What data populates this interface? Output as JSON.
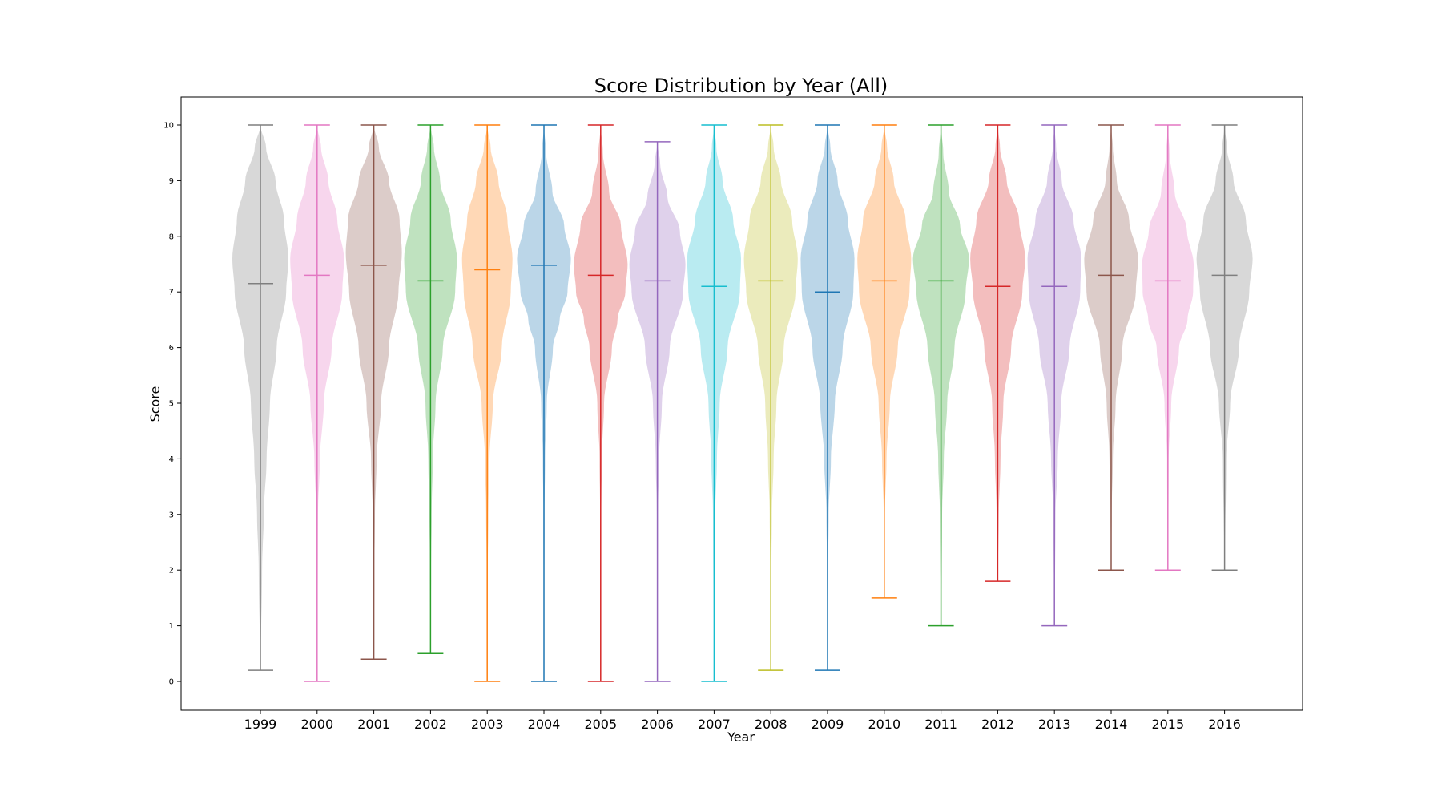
{
  "chart_data": {
    "type": "violin",
    "title": "Score Distribution by Year (All)",
    "xlabel": "Year",
    "ylabel": "Score",
    "ylim": [
      -0.5,
      10.5
    ],
    "yticks": [
      0,
      1,
      2,
      3,
      4,
      5,
      6,
      7,
      8,
      9,
      10
    ],
    "grid": false,
    "categories": [
      "1999",
      "2000",
      "2001",
      "2002",
      "2003",
      "2004",
      "2005",
      "2006",
      "2007",
      "2008",
      "2009",
      "2010",
      "2011",
      "2012",
      "2013",
      "2014",
      "2015",
      "2016"
    ],
    "series": [
      {
        "year": "1999",
        "color": "#7f7f7f",
        "min": 0.2,
        "max": 10.0,
        "median": 7.15,
        "profile": [
          [
            0.2,
            0.002
          ],
          [
            2.0,
            0.03
          ],
          [
            3.0,
            0.06
          ],
          [
            4.0,
            0.11
          ],
          [
            5.0,
            0.17
          ],
          [
            6.0,
            0.29
          ],
          [
            7.0,
            0.46
          ],
          [
            7.6,
            0.5
          ],
          [
            8.3,
            0.42
          ],
          [
            9.0,
            0.27
          ],
          [
            9.6,
            0.1
          ],
          [
            10.0,
            0.0
          ]
        ]
      },
      {
        "year": "2000",
        "color": "#e377c2",
        "min": 0.0,
        "max": 10.0,
        "median": 7.3,
        "profile": [
          [
            0.0,
            0.002
          ],
          [
            3.0,
            0.015
          ],
          [
            4.0,
            0.05
          ],
          [
            5.0,
            0.12
          ],
          [
            6.0,
            0.26
          ],
          [
            7.0,
            0.45
          ],
          [
            7.6,
            0.48
          ],
          [
            8.3,
            0.36
          ],
          [
            9.0,
            0.2
          ],
          [
            9.6,
            0.07
          ],
          [
            10.0,
            0.0
          ]
        ]
      },
      {
        "year": "2001",
        "color": "#8c564b",
        "min": 0.4,
        "max": 10.0,
        "median": 7.48,
        "profile": [
          [
            0.4,
            0.002
          ],
          [
            2.0,
            0.01
          ],
          [
            3.0,
            0.02
          ],
          [
            4.0,
            0.05
          ],
          [
            5.0,
            0.13
          ],
          [
            6.0,
            0.27
          ],
          [
            7.0,
            0.44
          ],
          [
            7.7,
            0.5
          ],
          [
            8.3,
            0.46
          ],
          [
            9.0,
            0.27
          ],
          [
            9.6,
            0.09
          ],
          [
            10.0,
            0.0
          ]
        ]
      },
      {
        "year": "2002",
        "color": "#2ca02c",
        "min": 0.5,
        "max": 10.0,
        "median": 7.2,
        "profile": [
          [
            0.5,
            0.002
          ],
          [
            2.0,
            0.01
          ],
          [
            3.0,
            0.02
          ],
          [
            4.0,
            0.04
          ],
          [
            5.0,
            0.09
          ],
          [
            6.0,
            0.22
          ],
          [
            7.0,
            0.44
          ],
          [
            7.6,
            0.47
          ],
          [
            8.3,
            0.36
          ],
          [
            9.0,
            0.17
          ],
          [
            9.6,
            0.06
          ],
          [
            10.0,
            0.0
          ]
        ]
      },
      {
        "year": "2003",
        "color": "#ff7f0e",
        "min": 0.0,
        "max": 10.0,
        "median": 7.4,
        "profile": [
          [
            0.0,
            0.002
          ],
          [
            2.0,
            0.01
          ],
          [
            3.0,
            0.02
          ],
          [
            4.0,
            0.04
          ],
          [
            5.0,
            0.1
          ],
          [
            6.0,
            0.26
          ],
          [
            7.0,
            0.42
          ],
          [
            7.6,
            0.45
          ],
          [
            8.3,
            0.36
          ],
          [
            9.0,
            0.2
          ],
          [
            9.6,
            0.06
          ],
          [
            10.0,
            0.0
          ]
        ]
      },
      {
        "year": "2004",
        "color": "#1f77b4",
        "min": 0.0,
        "max": 10.0,
        "median": 7.48,
        "profile": [
          [
            0.0,
            0.002
          ],
          [
            3.0,
            0.01
          ],
          [
            4.0,
            0.02
          ],
          [
            5.0,
            0.05
          ],
          [
            6.0,
            0.16
          ],
          [
            6.5,
            0.28
          ],
          [
            7.0,
            0.42
          ],
          [
            7.6,
            0.48
          ],
          [
            8.2,
            0.36
          ],
          [
            8.8,
            0.15
          ],
          [
            9.5,
            0.04
          ],
          [
            10.0,
            0.0
          ]
        ]
      },
      {
        "year": "2005",
        "color": "#d62728",
        "min": 0.0,
        "max": 10.0,
        "median": 7.3,
        "profile": [
          [
            0.0,
            0.002
          ],
          [
            3.0,
            0.01
          ],
          [
            4.0,
            0.02
          ],
          [
            5.0,
            0.06
          ],
          [
            6.0,
            0.2
          ],
          [
            6.5,
            0.3
          ],
          [
            7.0,
            0.44
          ],
          [
            7.5,
            0.48
          ],
          [
            8.2,
            0.36
          ],
          [
            8.8,
            0.15
          ],
          [
            9.5,
            0.04
          ],
          [
            10.0,
            0.0
          ]
        ]
      },
      {
        "year": "2006",
        "color": "#9467bd",
        "min": 0.0,
        "max": 9.7,
        "median": 7.2,
        "profile": [
          [
            0.0,
            0.002
          ],
          [
            3.0,
            0.01
          ],
          [
            4.0,
            0.03
          ],
          [
            5.0,
            0.08
          ],
          [
            6.0,
            0.22
          ],
          [
            7.0,
            0.46
          ],
          [
            7.5,
            0.5
          ],
          [
            8.1,
            0.4
          ],
          [
            8.7,
            0.18
          ],
          [
            9.3,
            0.05
          ],
          [
            9.7,
            0.0
          ]
        ]
      },
      {
        "year": "2007",
        "color": "#17becf",
        "min": 0.0,
        "max": 10.0,
        "median": 7.1,
        "profile": [
          [
            0.0,
            0.002
          ],
          [
            3.0,
            0.02
          ],
          [
            4.0,
            0.05
          ],
          [
            5.0,
            0.1
          ],
          [
            6.0,
            0.24
          ],
          [
            7.0,
            0.46
          ],
          [
            7.6,
            0.48
          ],
          [
            8.3,
            0.34
          ],
          [
            9.0,
            0.15
          ],
          [
            9.6,
            0.04
          ],
          [
            10.0,
            0.0
          ]
        ]
      },
      {
        "year": "2008",
        "color": "#bcbd22",
        "min": 0.2,
        "max": 10.0,
        "median": 7.2,
        "profile": [
          [
            0.2,
            0.002
          ],
          [
            2.0,
            0.01
          ],
          [
            3.0,
            0.02
          ],
          [
            4.0,
            0.05
          ],
          [
            5.0,
            0.1
          ],
          [
            6.0,
            0.23
          ],
          [
            7.0,
            0.44
          ],
          [
            7.6,
            0.48
          ],
          [
            8.3,
            0.38
          ],
          [
            9.0,
            0.18
          ],
          [
            9.6,
            0.05
          ],
          [
            10.0,
            0.0
          ]
        ]
      },
      {
        "year": "2009",
        "color": "#1f77b4",
        "min": 0.2,
        "max": 10.0,
        "median": 7.0,
        "profile": [
          [
            0.2,
            0.002
          ],
          [
            2.0,
            0.01
          ],
          [
            3.0,
            0.02
          ],
          [
            4.0,
            0.06
          ],
          [
            5.0,
            0.13
          ],
          [
            6.0,
            0.27
          ],
          [
            7.0,
            0.46
          ],
          [
            7.6,
            0.48
          ],
          [
            8.3,
            0.36
          ],
          [
            9.0,
            0.18
          ],
          [
            9.6,
            0.05
          ],
          [
            10.0,
            0.0
          ]
        ]
      },
      {
        "year": "2010",
        "color": "#ff7f0e",
        "min": 1.5,
        "max": 10.0,
        "median": 7.2,
        "profile": [
          [
            1.5,
            0.002
          ],
          [
            3.0,
            0.01
          ],
          [
            4.0,
            0.04
          ],
          [
            5.0,
            0.1
          ],
          [
            6.0,
            0.24
          ],
          [
            7.0,
            0.45
          ],
          [
            7.6,
            0.48
          ],
          [
            8.3,
            0.38
          ],
          [
            9.0,
            0.17
          ],
          [
            9.6,
            0.05
          ],
          [
            10.0,
            0.0
          ]
        ]
      },
      {
        "year": "2011",
        "color": "#2ca02c",
        "min": 1.0,
        "max": 10.0,
        "median": 7.2,
        "profile": [
          [
            1.0,
            0.002
          ],
          [
            3.0,
            0.02
          ],
          [
            4.0,
            0.05
          ],
          [
            5.0,
            0.11
          ],
          [
            6.0,
            0.24
          ],
          [
            7.0,
            0.44
          ],
          [
            7.6,
            0.5
          ],
          [
            8.2,
            0.34
          ],
          [
            8.8,
            0.14
          ],
          [
            9.5,
            0.04
          ],
          [
            10.0,
            0.0
          ]
        ]
      },
      {
        "year": "2012",
        "color": "#d62728",
        "min": 1.8,
        "max": 10.0,
        "median": 7.1,
        "profile": [
          [
            1.8,
            0.002
          ],
          [
            3.0,
            0.02
          ],
          [
            4.0,
            0.05
          ],
          [
            5.0,
            0.1
          ],
          [
            6.0,
            0.24
          ],
          [
            7.0,
            0.44
          ],
          [
            7.6,
            0.49
          ],
          [
            8.3,
            0.38
          ],
          [
            9.0,
            0.16
          ],
          [
            9.6,
            0.04
          ],
          [
            10.0,
            0.0
          ]
        ]
      },
      {
        "year": "2013",
        "color": "#9467bd",
        "min": 1.0,
        "max": 10.0,
        "median": 7.1,
        "profile": [
          [
            1.0,
            0.002
          ],
          [
            3.0,
            0.02
          ],
          [
            4.0,
            0.06
          ],
          [
            5.0,
            0.12
          ],
          [
            6.0,
            0.27
          ],
          [
            7.0,
            0.46
          ],
          [
            7.6,
            0.48
          ],
          [
            8.3,
            0.34
          ],
          [
            9.0,
            0.13
          ],
          [
            9.6,
            0.03
          ],
          [
            10.0,
            0.0
          ]
        ]
      },
      {
        "year": "2014",
        "color": "#8c564b",
        "min": 2.0,
        "max": 10.0,
        "median": 7.3,
        "profile": [
          [
            2.0,
            0.002
          ],
          [
            3.0,
            0.01
          ],
          [
            4.0,
            0.03
          ],
          [
            5.0,
            0.08
          ],
          [
            6.0,
            0.2
          ],
          [
            7.0,
            0.44
          ],
          [
            7.6,
            0.48
          ],
          [
            8.3,
            0.32
          ],
          [
            9.0,
            0.1
          ],
          [
            9.6,
            0.03
          ],
          [
            10.0,
            0.0
          ]
        ]
      },
      {
        "year": "2015",
        "color": "#e377c2",
        "min": 2.0,
        "max": 10.0,
        "median": 7.2,
        "profile": [
          [
            2.0,
            0.002
          ],
          [
            4.0,
            0.015
          ],
          [
            5.0,
            0.06
          ],
          [
            6.0,
            0.2
          ],
          [
            6.5,
            0.35
          ],
          [
            7.0,
            0.45
          ],
          [
            7.5,
            0.46
          ],
          [
            8.1,
            0.34
          ],
          [
            8.8,
            0.12
          ],
          [
            9.5,
            0.03
          ],
          [
            10.0,
            0.0
          ]
        ]
      },
      {
        "year": "2016",
        "color": "#7f7f7f",
        "min": 2.0,
        "max": 10.0,
        "median": 7.3,
        "profile": [
          [
            2.0,
            0.002
          ],
          [
            4.0,
            0.03
          ],
          [
            5.0,
            0.1
          ],
          [
            6.0,
            0.26
          ],
          [
            7.0,
            0.44
          ],
          [
            7.6,
            0.5
          ],
          [
            8.3,
            0.38
          ],
          [
            9.0,
            0.16
          ],
          [
            9.6,
            0.04
          ],
          [
            10.0,
            0.0
          ]
        ]
      }
    ]
  }
}
